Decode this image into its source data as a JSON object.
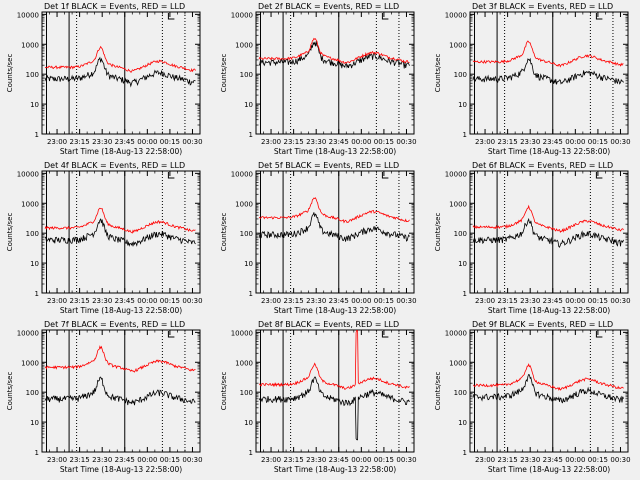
{
  "chart_data": {
    "type": "line",
    "panels": [
      {
        "title": "Det 1f BLACK = Events, RED = LLD",
        "black_level": 70,
        "red_level": 170,
        "black_spike": 1.0,
        "red_spike": 1.0
      },
      {
        "title": "Det 2f BLACK = Events, RED = LLD",
        "black_level": 250,
        "red_level": 330,
        "black_spike": 1.0,
        "red_spike": 1.0
      },
      {
        "title": "Det 3f BLACK = Events, RED = LLD",
        "black_level": 70,
        "red_level": 260,
        "black_spike": 1.0,
        "red_spike": 1.0
      },
      {
        "title": "Det 4f BLACK = Events, RED = LLD",
        "black_level": 60,
        "red_level": 150,
        "black_spike": 1.0,
        "red_spike": 1.0
      },
      {
        "title": "Det 5f BLACK = Events, RED = LLD",
        "black_level": 90,
        "red_level": 330,
        "black_spike": 1.0,
        "red_spike": 1.0
      },
      {
        "title": "Det 6f BLACK = Events, RED = LLD",
        "black_level": 60,
        "red_level": 160,
        "black_spike": 1.0,
        "red_spike": 1.0
      },
      {
        "title": "Det 7f BLACK = Events, RED = LLD",
        "black_level": 60,
        "red_level": 680,
        "black_spike": 1.0,
        "red_spike": 1.0
      },
      {
        "title": "Det 8f BLACK = Events, RED = LLD",
        "black_level": 60,
        "red_level": 180,
        "black_spike": 0.05,
        "red_spike": 60.0
      },
      {
        "title": "Det 9f BLACK = Events, RED = LLD",
        "black_level": 70,
        "red_level": 170,
        "black_spike": 1.0,
        "red_spike": 1.0
      }
    ],
    "x_tick_labels": [
      "23:00",
      "23:15",
      "23:30",
      "23:45",
      "00:00",
      "00:15",
      "00:30"
    ],
    "x_range_minutes": [
      -10,
      95
    ],
    "xlabel": "Start Time (18-Aug-13 22:58:00)",
    "ylabel": "Counts/sec",
    "y_tick_labels": [
      "1",
      "10",
      "100",
      "1000",
      "10000"
    ],
    "y_scale": "log",
    "ylim": [
      1,
      12000
    ],
    "series": [
      {
        "name": "Events",
        "color": "#000000"
      },
      {
        "name": "LLD",
        "color": "#ff0000"
      }
    ],
    "vertical_markers_solid_min": [
      -7,
      8,
      45
    ],
    "vertical_markers_dotted_min": [
      13,
      70,
      85
    ],
    "grid": false,
    "legend": "in title"
  },
  "colors": {
    "background": "#f0f0f0",
    "events": "#000000",
    "lld": "#ff0000"
  }
}
